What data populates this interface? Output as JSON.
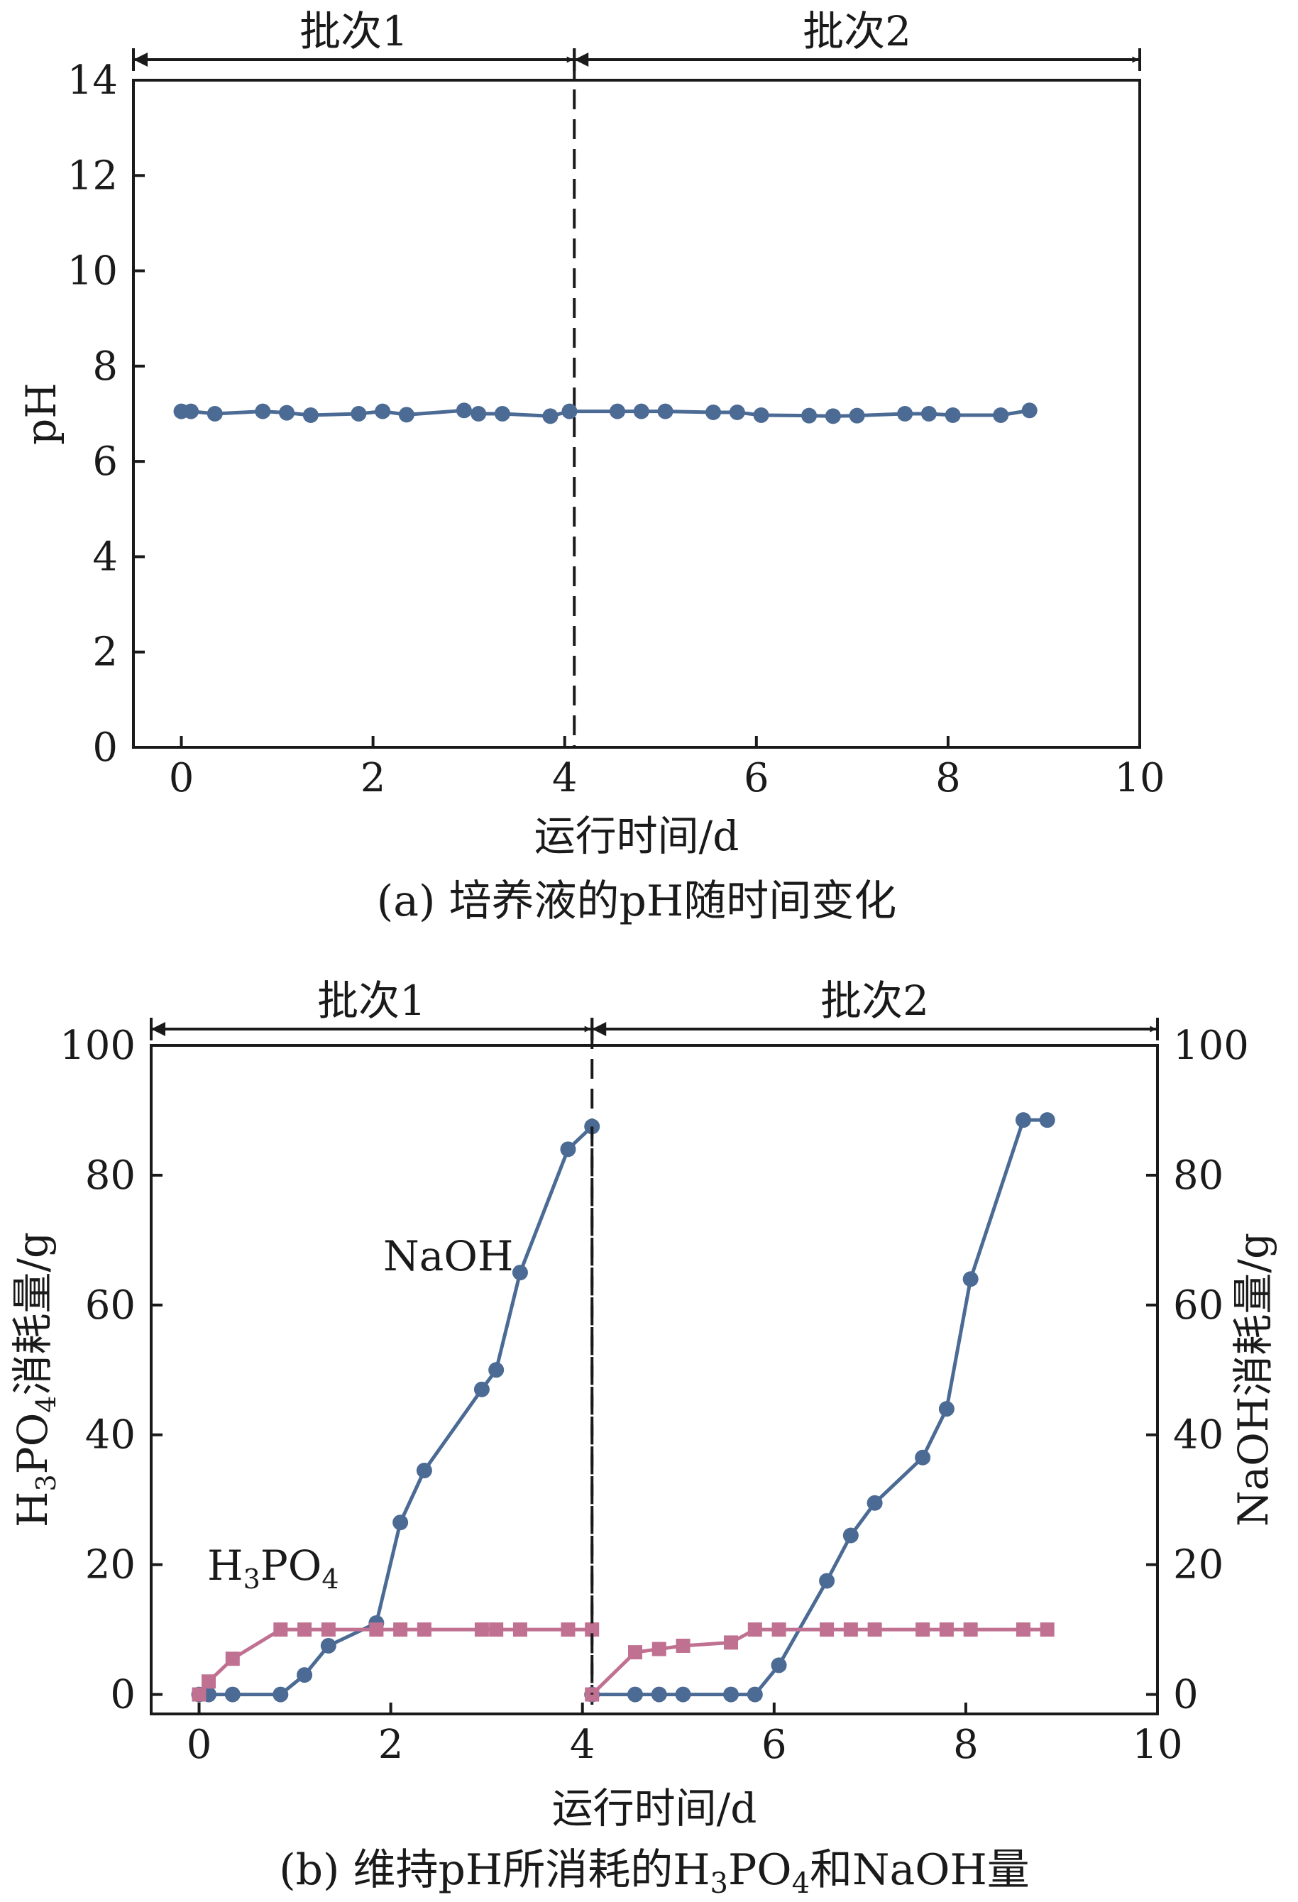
{
  "chart_data": [
    {
      "type": "line",
      "caption": "(a) 培养液的pH随时间变化",
      "xlabel": "运行时间/d",
      "ylabel": "pH",
      "xlim": [
        -0.5,
        10
      ],
      "ylim": [
        0,
        14
      ],
      "xticks": [
        0,
        2,
        4,
        6,
        8,
        10
      ],
      "yticks": [
        0,
        2,
        4,
        6,
        8,
        10,
        12,
        14
      ],
      "batches": [
        {
          "label": "批次1",
          "range": [
            -0.5,
            4.1
          ]
        },
        {
          "label": "批次2",
          "range": [
            4.1,
            10
          ]
        }
      ],
      "divider_x": 4.1,
      "series": [
        {
          "color": "#4b6a94",
          "x": [
            0,
            0.1,
            0.35,
            0.85,
            1.1,
            1.35,
            1.85,
            2.1,
            2.35,
            2.95,
            3.1,
            3.35,
            3.85,
            4.05,
            4.55,
            4.8,
            5.05,
            5.55,
            5.8,
            6.05,
            6.55,
            6.8,
            7.05,
            7.55,
            7.8,
            8.05,
            8.55,
            8.85
          ],
          "y": [
            7.05,
            7.05,
            7.0,
            7.05,
            7.02,
            6.97,
            7.0,
            7.05,
            6.98,
            7.07,
            7.0,
            7.0,
            6.95,
            7.05,
            7.05,
            7.05,
            7.05,
            7.03,
            7.03,
            6.97,
            6.96,
            6.95,
            6.96,
            7.0,
            7.0,
            6.97,
            6.97,
            7.07
          ]
        }
      ]
    },
    {
      "type": "line",
      "caption_parts": {
        "prefix": "(b) 维持pH所消耗的H",
        "sub1": "3",
        "mid": "PO",
        "sub2": "4",
        "suffix": "和NaOH量"
      },
      "xlabel": "运行时间/d",
      "ylabel_left_parts": {
        "p1": "H",
        "s1": "3",
        "p2": "PO",
        "s2": "4",
        "p3": "消耗量/g"
      },
      "ylabel_right": "NaOH消耗量/g",
      "xlim": [
        -0.5,
        10
      ],
      "ylim": [
        -3,
        100
      ],
      "xticks": [
        0,
        2,
        4,
        6,
        8,
        10
      ],
      "yticks": [
        0,
        20,
        40,
        60,
        80,
        100
      ],
      "batches": [
        {
          "label": "批次1",
          "range": [
            -0.5,
            4.1
          ]
        },
        {
          "label": "批次2",
          "range": [
            4.1,
            10
          ]
        }
      ],
      "divider_x": 4.1,
      "annotations": {
        "naoh": "NaOH",
        "h3po4_parts": {
          "p1": "H",
          "s1": "3",
          "p2": "PO",
          "s2": "4"
        }
      },
      "series": [
        {
          "name": "NaOH",
          "color": "#4b6a94",
          "marker": "circle",
          "segments": [
            {
              "x": [
                0,
                0.1,
                0.35,
                0.85,
                1.1,
                1.35,
                1.85,
                2.1,
                2.35,
                2.95,
                3.1,
                3.35,
                3.85,
                4.1
              ],
              "y": [
                0,
                0,
                0,
                0,
                3,
                7.5,
                11,
                26.5,
                34.5,
                47,
                50,
                65,
                84,
                87.5
              ]
            },
            {
              "x": [
                4.1,
                4.55,
                4.8,
                5.05,
                5.55,
                5.8,
                6.05,
                6.55,
                6.8,
                7.05,
                7.55,
                7.8,
                8.05,
                8.6,
                8.85
              ],
              "y": [
                0,
                0,
                0,
                0,
                0,
                0,
                4.5,
                17.5,
                24.5,
                29.5,
                36.5,
                44,
                64,
                88.5,
                88.5
              ]
            }
          ]
        },
        {
          "name": "H3PO4",
          "color": "#c07090",
          "marker": "square",
          "segments": [
            {
              "x": [
                0,
                0.1,
                0.35,
                0.85,
                1.1,
                1.35,
                1.85,
                2.1,
                2.35,
                2.95,
                3.1,
                3.35,
                3.85,
                4.1
              ],
              "y": [
                0,
                2,
                5.5,
                10,
                10,
                10,
                10,
                10,
                10,
                10,
                10,
                10,
                10,
                10
              ]
            },
            {
              "x": [
                4.1,
                4.55,
                4.8,
                5.05,
                5.55,
                5.8,
                6.05,
                6.55,
                6.8,
                7.05,
                7.55,
                7.8,
                8.05,
                8.6,
                8.85
              ],
              "y": [
                0,
                6.5,
                7,
                7.5,
                8,
                10,
                10,
                10,
                10,
                10,
                10,
                10,
                10,
                10,
                10
              ]
            }
          ]
        }
      ]
    }
  ]
}
